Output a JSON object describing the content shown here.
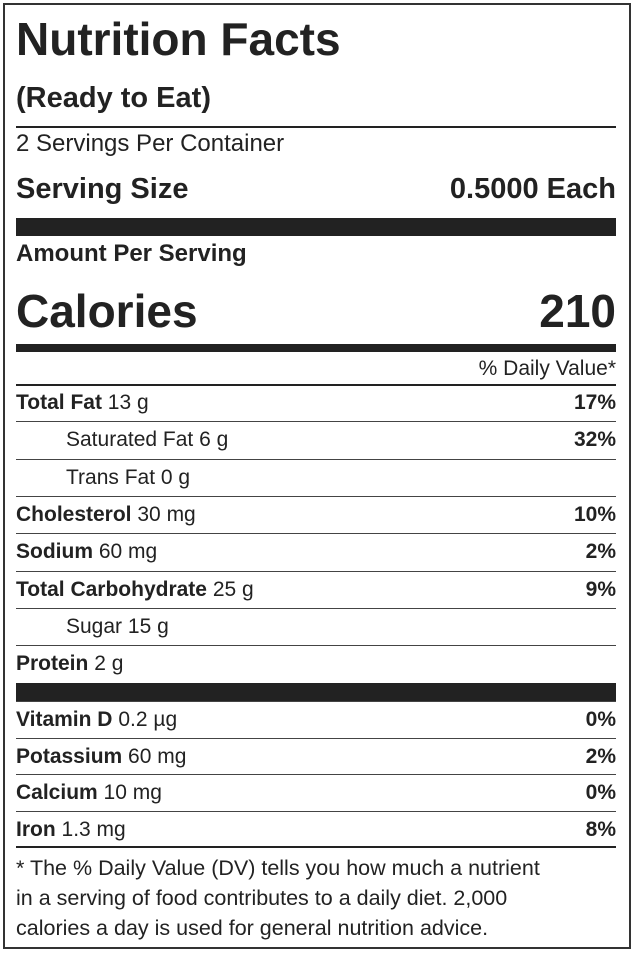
{
  "label": {
    "title": "Nutrition Facts",
    "subtitle": "(Ready to Eat)",
    "servings": "2 Servings Per Container",
    "serving_size_label": "Serving Size",
    "serving_size_value": "0.5000 Each",
    "amount_per_serving": "Amount Per Serving",
    "calories_label": "Calories",
    "calories_value": "210",
    "dv_header": "% Daily Value*",
    "nutrients": [
      {
        "name": "Total Fat",
        "amount": "13 g",
        "dv": "17%",
        "indent": false
      },
      {
        "name": "Saturated Fat",
        "amount": "6 g",
        "dv": "32%",
        "indent": true
      },
      {
        "name": "Trans Fat",
        "amount": "0 g",
        "indent": true
      },
      {
        "name": "Cholesterol",
        "amount": "30 mg",
        "dv": "10%",
        "indent": false
      },
      {
        "name": "Sodium",
        "amount": "60 mg",
        "dv": "2%",
        "indent": false
      },
      {
        "name": "Total Carbohydrate",
        "amount": "25 g",
        "dv": "9%",
        "indent": false
      },
      {
        "name": "Sugar",
        "amount": "15 g",
        "indent": true
      },
      {
        "name": "Protein",
        "amount": "2 g",
        "indent": false
      }
    ],
    "vitamins": [
      {
        "name": "Vitamin D",
        "amount": "0.2 µg",
        "dv": "0%"
      },
      {
        "name": "Potassium",
        "amount": "60 mg",
        "dv": "2%"
      },
      {
        "name": "Calcium",
        "amount": "10 mg",
        "dv": "0%"
      },
      {
        "name": "Iron",
        "amount": "1.3 mg",
        "dv": "8%"
      }
    ],
    "footnote": [
      "* The % Daily Value (DV) tells you how much a nutrient",
      "in a serving of food contributes to a daily diet. 2,000",
      "calories a day is used for general nutrition advice."
    ]
  }
}
